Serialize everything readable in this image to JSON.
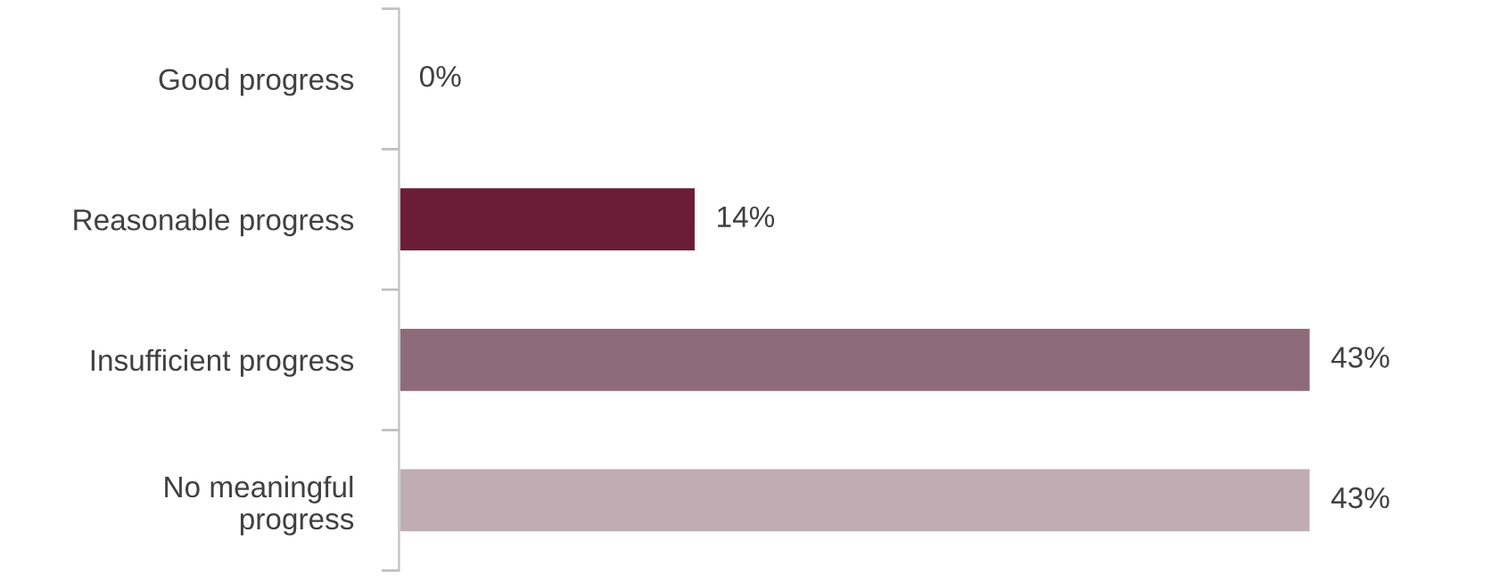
{
  "chart_data": {
    "type": "bar",
    "orientation": "horizontal",
    "categories": [
      "Good progress",
      "Reasonable progress",
      "Insufficient progress",
      "No meaningful\nprogress"
    ],
    "values": [
      0,
      14,
      43,
      43
    ],
    "colors": [
      null,
      "#6b1d38",
      "#8e6b78",
      "#bfadb3"
    ],
    "value_labels": [
      "0%",
      "14%",
      "43%",
      "43%"
    ],
    "legend": false
  }
}
